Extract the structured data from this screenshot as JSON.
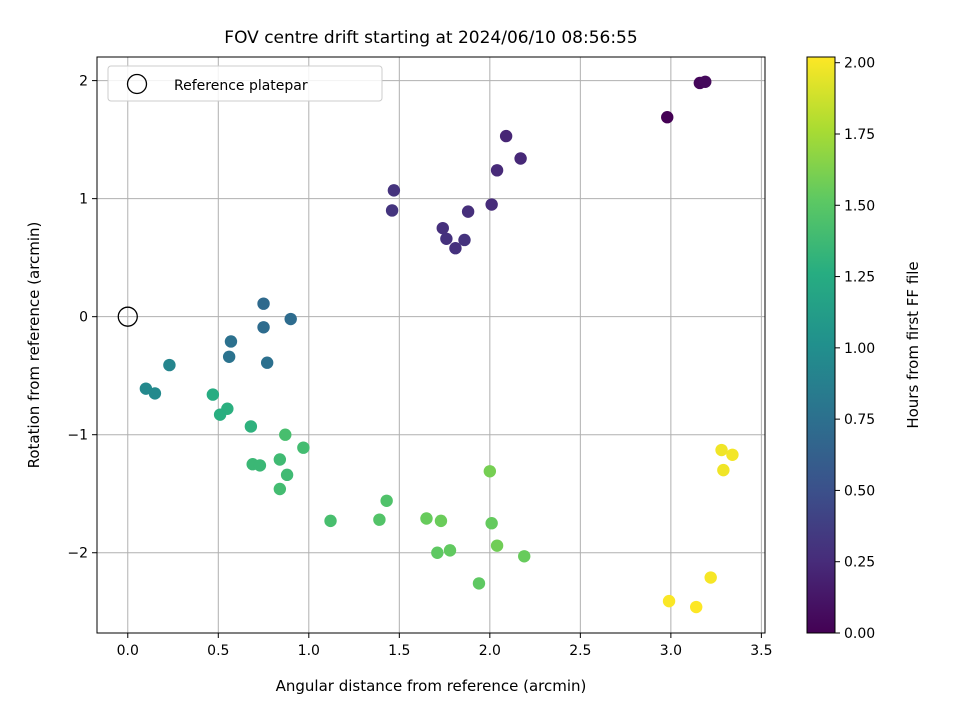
{
  "chart_data": {
    "type": "scatter",
    "title": "FOV centre drift starting at 2024/06/10 08:56:55",
    "xlabel": "Angular distance from reference (arcmin)",
    "ylabel": "Rotation from reference (arcmin)",
    "xlim": [
      -0.17,
      3.52
    ],
    "ylim": [
      -2.68,
      2.2
    ],
    "xticks": [
      0.0,
      0.5,
      1.0,
      1.5,
      2.0,
      2.5,
      3.0,
      3.5
    ],
    "xtick_labels": [
      "0.0",
      "0.5",
      "1.0",
      "1.5",
      "2.0",
      "2.5",
      "3.0",
      "3.5"
    ],
    "yticks": [
      -2,
      -1,
      0,
      1,
      2
    ],
    "ytick_labels": [
      "−2",
      "−1",
      "0",
      "1",
      "2"
    ],
    "grid": true,
    "legend": {
      "placement": "upper-left",
      "entries": [
        "Reference platepar"
      ]
    },
    "reference_point": {
      "x": 0.0,
      "y": 0.0
    },
    "colorbar": {
      "label": "Hours from first FF file",
      "range": [
        0.0,
        2.02
      ],
      "ticks": [
        0.0,
        0.25,
        0.5,
        0.75,
        1.0,
        1.25,
        1.5,
        1.75,
        2.0
      ],
      "tick_labels": [
        "0.00",
        "0.25",
        "0.50",
        "0.75",
        "1.00",
        "1.25",
        "1.50",
        "1.75",
        "2.00"
      ],
      "colormap": "viridis"
    },
    "points": [
      {
        "x": 2.98,
        "y": 1.69,
        "t": 0.0
      },
      {
        "x": 3.16,
        "y": 1.98,
        "t": 0.03
      },
      {
        "x": 3.19,
        "y": 1.99,
        "t": 0.05
      },
      {
        "x": 2.09,
        "y": 1.53,
        "t": 0.22
      },
      {
        "x": 2.17,
        "y": 1.34,
        "t": 0.23
      },
      {
        "x": 2.04,
        "y": 1.24,
        "t": 0.24
      },
      {
        "x": 2.01,
        "y": 0.95,
        "t": 0.25
      },
      {
        "x": 1.88,
        "y": 0.89,
        "t": 0.27
      },
      {
        "x": 1.47,
        "y": 1.07,
        "t": 0.3
      },
      {
        "x": 1.46,
        "y": 0.9,
        "t": 0.31
      },
      {
        "x": 1.74,
        "y": 0.75,
        "t": 0.28
      },
      {
        "x": 1.76,
        "y": 0.66,
        "t": 0.29
      },
      {
        "x": 1.86,
        "y": 0.65,
        "t": 0.3
      },
      {
        "x": 1.81,
        "y": 0.58,
        "t": 0.29
      },
      {
        "x": 0.75,
        "y": 0.11,
        "t": 0.7
      },
      {
        "x": 0.9,
        "y": -0.02,
        "t": 0.72
      },
      {
        "x": 0.75,
        "y": -0.09,
        "t": 0.72
      },
      {
        "x": 0.57,
        "y": -0.21,
        "t": 0.76
      },
      {
        "x": 0.56,
        "y": -0.34,
        "t": 0.77
      },
      {
        "x": 0.77,
        "y": -0.39,
        "t": 0.75
      },
      {
        "x": 0.23,
        "y": -0.41,
        "t": 0.92
      },
      {
        "x": 0.1,
        "y": -0.61,
        "t": 0.95
      },
      {
        "x": 0.15,
        "y": -0.65,
        "t": 0.96
      },
      {
        "x": 0.47,
        "y": -0.66,
        "t": 1.25
      },
      {
        "x": 0.55,
        "y": -0.78,
        "t": 1.28
      },
      {
        "x": 0.51,
        "y": -0.83,
        "t": 1.27
      },
      {
        "x": 0.68,
        "y": -0.93,
        "t": 1.3
      },
      {
        "x": 0.87,
        "y": -1.0,
        "t": 1.42
      },
      {
        "x": 0.97,
        "y": -1.11,
        "t": 1.4
      },
      {
        "x": 0.84,
        "y": -1.21,
        "t": 1.38
      },
      {
        "x": 0.69,
        "y": -1.25,
        "t": 1.36
      },
      {
        "x": 0.73,
        "y": -1.26,
        "t": 1.36
      },
      {
        "x": 0.88,
        "y": -1.34,
        "t": 1.38
      },
      {
        "x": 0.84,
        "y": -1.46,
        "t": 1.4
      },
      {
        "x": 1.12,
        "y": -1.73,
        "t": 1.42
      },
      {
        "x": 1.43,
        "y": -1.56,
        "t": 1.46
      },
      {
        "x": 1.39,
        "y": -1.72,
        "t": 1.47
      },
      {
        "x": 1.65,
        "y": -1.71,
        "t": 1.55
      },
      {
        "x": 1.73,
        "y": -1.73,
        "t": 1.56
      },
      {
        "x": 2.0,
        "y": -1.31,
        "t": 1.6
      },
      {
        "x": 2.01,
        "y": -1.75,
        "t": 1.54
      },
      {
        "x": 1.71,
        "y": -2.0,
        "t": 1.52
      },
      {
        "x": 1.78,
        "y": -1.98,
        "t": 1.53
      },
      {
        "x": 2.04,
        "y": -1.94,
        "t": 1.58
      },
      {
        "x": 2.19,
        "y": -2.03,
        "t": 1.55
      },
      {
        "x": 1.94,
        "y": -2.26,
        "t": 1.52
      },
      {
        "x": 3.28,
        "y": -1.13,
        "t": 1.98
      },
      {
        "x": 3.34,
        "y": -1.17,
        "t": 1.99
      },
      {
        "x": 3.29,
        "y": -1.3,
        "t": 1.98
      },
      {
        "x": 3.22,
        "y": -2.21,
        "t": 2.0
      },
      {
        "x": 2.99,
        "y": -2.41,
        "t": 2.01
      },
      {
        "x": 3.14,
        "y": -2.46,
        "t": 2.02
      }
    ]
  }
}
